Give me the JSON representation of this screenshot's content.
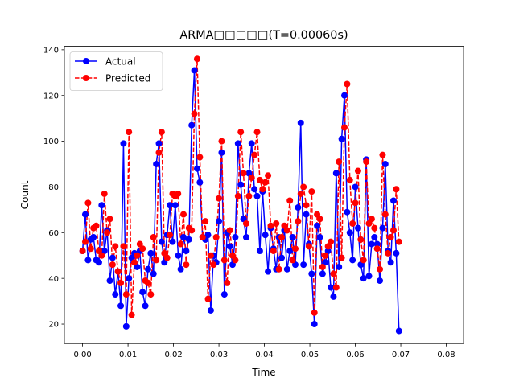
{
  "chart_data": {
    "type": "line",
    "title": "ARMA□□□□□(T=0.00060s)",
    "xlabel": "Time",
    "ylabel": "Count",
    "xlim": [
      -0.004,
      0.0838
    ],
    "ylim": [
      11.5,
      141.5
    ],
    "x_ticks": [
      0.0,
      0.01,
      0.02,
      0.03,
      0.04,
      0.05,
      0.06,
      0.07,
      0.08
    ],
    "x_tick_labels": [
      "0.00",
      "0.01",
      "0.02",
      "0.03",
      "0.04",
      "0.05",
      "0.06",
      "0.07",
      "0.08"
    ],
    "y_ticks": [
      20,
      40,
      60,
      80,
      100,
      120,
      140
    ],
    "y_tick_labels": [
      "20",
      "40",
      "60",
      "80",
      "100",
      "120",
      "140"
    ],
    "grid": false,
    "legend_position": "top-left",
    "x_start": 0.0,
    "x_step": 0.0006,
    "series": [
      {
        "name": "Actual",
        "color": "#0000ff",
        "line_style": "solid",
        "marker": "circle",
        "values": [
          52,
          68,
          48,
          57,
          58,
          48,
          47,
          72,
          52,
          61,
          39,
          49,
          33,
          43,
          28,
          99,
          19,
          40,
          49,
          51,
          45,
          52,
          34,
          28,
          44,
          51,
          42,
          90,
          99,
          56,
          47,
          59,
          72,
          56,
          72,
          50,
          44,
          58,
          52,
          57,
          107,
          131,
          88,
          82,
          58,
          57,
          59,
          26,
          50,
          47,
          65,
          95,
          33,
          60,
          54,
          46,
          58,
          99,
          81,
          66,
          58,
          86,
          99,
          79,
          76,
          52,
          78,
          59,
          43,
          62,
          53,
          44,
          58,
          49,
          61,
          44,
          52,
          58,
          46,
          71,
          108,
          46,
          68,
          55,
          42,
          20,
          63,
          58,
          42,
          47,
          52,
          36,
          32,
          86,
          45,
          101,
          120,
          69,
          60,
          48,
          80,
          62,
          46,
          40,
          92,
          41,
          55,
          58,
          55,
          39,
          62,
          90,
          52,
          47,
          74,
          51,
          17
        ],
        "x_overrides": {
          "35": 0.02105
        }
      },
      {
        "name": "Predicted",
        "color": "#ff0000",
        "line_style": "dashed",
        "marker": "circle",
        "values": [
          52,
          56,
          73,
          53,
          62,
          63,
          52,
          50,
          77,
          60,
          66,
          46,
          54,
          43,
          38,
          54,
          33,
          104,
          24,
          47,
          50,
          55,
          53,
          39,
          38,
          33,
          58,
          48,
          95,
          104,
          51,
          49,
          59,
          77,
          76,
          77,
          55,
          68,
          46,
          62,
          61,
          112,
          136,
          93,
          58,
          65,
          31,
          50,
          46,
          58,
          75,
          100,
          48,
          38,
          61,
          50,
          48,
          76,
          104,
          86,
          64,
          76,
          84,
          94,
          104,
          83,
          79,
          82,
          85,
          63,
          52,
          64,
          44,
          58,
          63,
          61,
          74,
          48,
          53,
          65,
          77,
          80,
          72,
          54,
          78,
          25,
          68,
          66,
          45,
          50,
          54,
          56,
          42,
          36,
          91,
          49,
          106,
          125,
          83,
          64,
          73,
          87,
          57,
          48,
          91,
          64,
          66,
          62,
          53,
          44,
          94,
          68,
          51,
          58,
          61,
          79,
          56
        ],
        "x_overrides": {}
      }
    ]
  }
}
